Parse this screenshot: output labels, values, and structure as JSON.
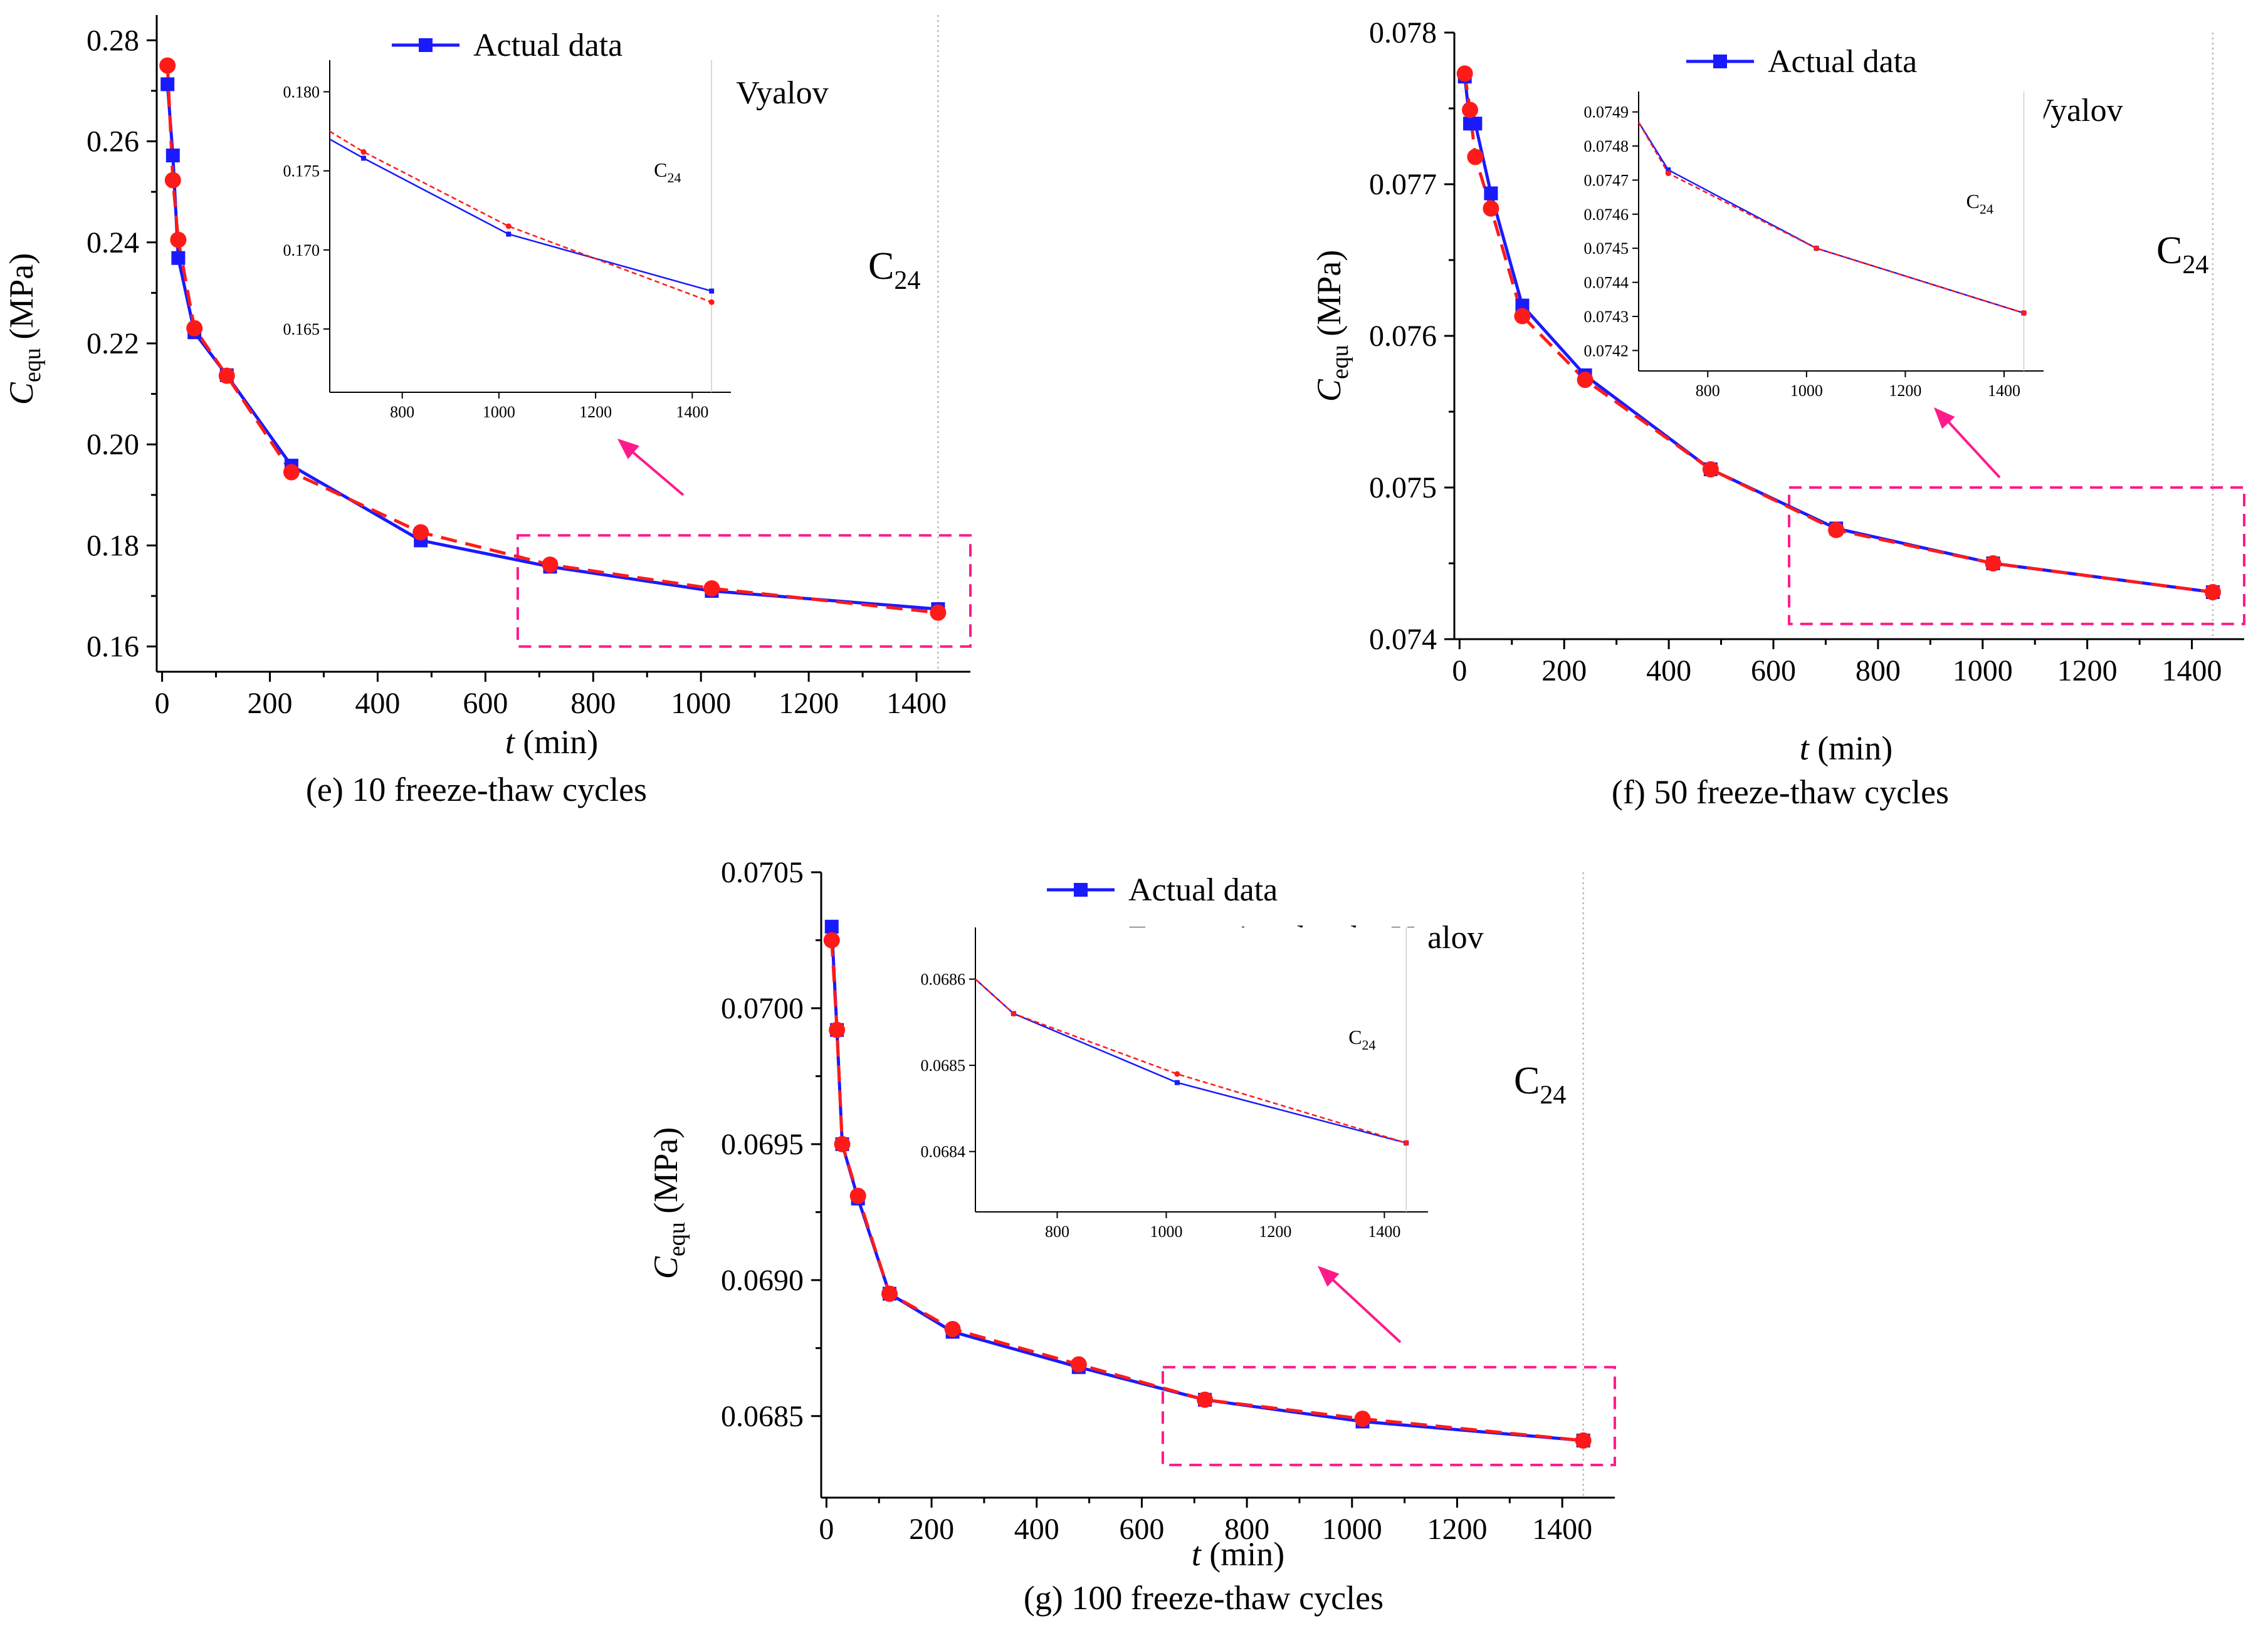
{
  "colors": {
    "actual": "#1a1aff",
    "forecast": "#ff1a1a",
    "box": "#ff1a8c",
    "arrow": "#ff1a8c",
    "c24_line": "#bbbbbb"
  },
  "legend": {
    "actual_label": "Actual data",
    "forecast_label": "Forecasting data by Vyalov"
  },
  "chart_data": [
    {
      "id": "e",
      "type": "line",
      "caption": "(e) 10 freeze-thaw cycles",
      "xlabel_italic": "t",
      "xlabel_rest": " (min)",
      "ylabel_main": "C",
      "ylabel_sub": "equ",
      "ylabel_rest": " (MPa)",
      "c24_main": "C",
      "c24_sub": "24",
      "xlim": [
        -10,
        1500
      ],
      "ylim": [
        0.155,
        0.285
      ],
      "xticks": [
        0,
        200,
        400,
        600,
        800,
        1000,
        1200,
        1400
      ],
      "xtick_labels": [
        "0",
        "200",
        "400",
        "600",
        "800",
        "1000",
        "1200",
        "1400"
      ],
      "yticks": [
        0.16,
        0.18,
        0.2,
        0.22,
        0.24,
        0.26,
        0.28
      ],
      "ytick_labels": [
        "0.16",
        "0.18",
        "0.20",
        "0.22",
        "0.24",
        "0.26",
        "0.28"
      ],
      "c24_x": 1440,
      "zoom_box": {
        "x": [
          660,
          1500
        ],
        "y": [
          0.16,
          0.182
        ]
      },
      "series": [
        {
          "name": "Actual data",
          "x": [
            10,
            20,
            30,
            60,
            120,
            240,
            480,
            720,
            1020,
            1440
          ],
          "y": [
            0.2713,
            0.2572,
            0.2369,
            0.2222,
            0.2137,
            0.1958,
            0.181,
            0.1758,
            0.171,
            0.1674
          ]
        },
        {
          "name": "Forecasting data by Vyalov",
          "x": [
            10,
            20,
            30,
            60,
            120,
            240,
            480,
            720,
            1020,
            1440
          ],
          "y": [
            0.275,
            0.2523,
            0.2405,
            0.223,
            0.2136,
            0.1945,
            0.1826,
            0.1762,
            0.1715,
            0.1667
          ]
        }
      ],
      "inset": {
        "xlim": [
          650,
          1480
        ],
        "ylim": [
          0.161,
          0.182
        ],
        "xticks": [
          800,
          1000,
          1200,
          1400
        ],
        "xtick_labels": [
          "800",
          "1000",
          "1200",
          "1400"
        ],
        "yticks": [
          0.165,
          0.17,
          0.175,
          0.18
        ],
        "ytick_labels": [
          "0.165",
          "0.170",
          "0.175",
          "0.180"
        ],
        "actual_x": [
          650,
          720,
          1020,
          1440
        ],
        "actual_y": [
          0.177,
          0.1758,
          0.171,
          0.1674
        ],
        "forecast_x": [
          650,
          720,
          1020,
          1440
        ],
        "forecast_y": [
          0.1775,
          0.1762,
          0.1715,
          0.1667
        ]
      }
    },
    {
      "id": "f",
      "type": "line",
      "caption": "(f) 50 freeze-thaw cycles",
      "xlabel_italic": "t",
      "xlabel_rest": " (min)",
      "ylabel_main": "C",
      "ylabel_sub": "equ",
      "ylabel_rest": " (MPa)",
      "c24_main": "C",
      "c24_sub": "24",
      "xlim": [
        -10,
        1500
      ],
      "ylim": [
        0.074,
        0.078
      ],
      "xticks": [
        0,
        200,
        400,
        600,
        800,
        1000,
        1200,
        1400
      ],
      "xtick_labels": [
        "0",
        "200",
        "400",
        "600",
        "800",
        "1000",
        "1200",
        "1400"
      ],
      "yticks": [
        0.074,
        0.075,
        0.076,
        0.077,
        0.078
      ],
      "ytick_labels": [
        "0.074",
        "0.075",
        "0.076",
        "0.077",
        "0.078"
      ],
      "c24_x": 1440,
      "zoom_box": {
        "x": [
          630,
          1500
        ],
        "y": [
          0.0741,
          0.075
        ]
      },
      "series": [
        {
          "name": "Actual data",
          "x": [
            10,
            20,
            30,
            60,
            120,
            240,
            480,
            720,
            1020,
            1440
          ],
          "y": [
            0.07771,
            0.0774,
            0.0774,
            0.07694,
            0.0762,
            0.07574,
            0.07512,
            0.07473,
            0.0745,
            0.07431
          ]
        },
        {
          "name": "Forecasting data by Vyalov",
          "x": [
            10,
            20,
            30,
            60,
            120,
            240,
            480,
            720,
            1020,
            1440
          ],
          "y": [
            0.07773,
            0.07749,
            0.07718,
            0.07684,
            0.07613,
            0.07571,
            0.07512,
            0.07472,
            0.0745,
            0.07431
          ]
        }
      ],
      "inset": {
        "xlim": [
          660,
          1480
        ],
        "ylim": [
          0.07414,
          0.07496
        ],
        "xticks": [
          800,
          1000,
          1200,
          1400
        ],
        "xtick_labels": [
          "800",
          "1000",
          "1200",
          "1400"
        ],
        "yticks": [
          0.0742,
          0.0743,
          0.0744,
          0.0745,
          0.0746,
          0.0747,
          0.0748,
          0.0749
        ],
        "ytick_labels": [
          "0.0742",
          "0.0743",
          "0.0744",
          "0.0745",
          "0.0746",
          "0.0747",
          "0.0748",
          "0.0749"
        ],
        "actual_x": [
          660,
          720,
          1020,
          1440
        ],
        "actual_y": [
          0.07487,
          0.07473,
          0.0745,
          0.07431
        ],
        "forecast_x": [
          660,
          720,
          1020,
          1440
        ],
        "forecast_y": [
          0.07487,
          0.07472,
          0.0745,
          0.07431
        ]
      }
    },
    {
      "id": "g",
      "type": "line",
      "caption": "(g) 100 freeze-thaw cycles",
      "xlabel_italic": "t",
      "xlabel_rest": " (min)",
      "ylabel_main": "C",
      "ylabel_sub": "equ",
      "ylabel_rest": " (MPa)",
      "c24_main": "C",
      "c24_sub": "24",
      "xlim": [
        -10,
        1500
      ],
      "ylim": [
        0.0682,
        0.0705
      ],
      "xticks": [
        0,
        200,
        400,
        600,
        800,
        1000,
        1200,
        1400
      ],
      "xtick_labels": [
        "0",
        "200",
        "400",
        "600",
        "800",
        "1000",
        "1200",
        "1400"
      ],
      "yticks": [
        0.0685,
        0.069,
        0.0695,
        0.07,
        0.0705
      ],
      "ytick_labels": [
        "0.0685",
        "0.0690",
        "0.0695",
        "0.0700",
        "0.0705"
      ],
      "c24_x": 1440,
      "zoom_box": {
        "x": [
          640,
          1500
        ],
        "y": [
          0.06832,
          0.06868
        ]
      },
      "series": [
        {
          "name": "Actual data",
          "x": [
            10,
            20,
            30,
            60,
            120,
            240,
            480,
            720,
            1020,
            1440
          ],
          "y": [
            0.0703,
            0.06992,
            0.0695,
            0.0693,
            0.06895,
            0.06881,
            0.06868,
            0.06856,
            0.06848,
            0.06841
          ]
        },
        {
          "name": "Forecasting data by Vyalov",
          "x": [
            10,
            20,
            30,
            60,
            120,
            240,
            480,
            720,
            1020,
            1440
          ],
          "y": [
            0.07025,
            0.06992,
            0.0695,
            0.06931,
            0.06895,
            0.06882,
            0.06869,
            0.06856,
            0.06849,
            0.06841
          ]
        }
      ],
      "inset": {
        "xlim": [
          650,
          1480
        ],
        "ylim": [
          0.06833,
          0.06866
        ],
        "xticks": [
          800,
          1000,
          1200,
          1400
        ],
        "xtick_labels": [
          "800",
          "1000",
          "1200",
          "1400"
        ],
        "yticks": [
          0.0684,
          0.0685,
          0.0686
        ],
        "ytick_labels": [
          "0.0684",
          "0.0685",
          "0.0686"
        ],
        "actual_x": [
          650,
          720,
          1020,
          1440
        ],
        "actual_y": [
          0.0686,
          0.06856,
          0.06848,
          0.06841
        ],
        "forecast_x": [
          650,
          720,
          1020,
          1440
        ],
        "forecast_y": [
          0.0686,
          0.06856,
          0.06849,
          0.06841
        ]
      }
    }
  ]
}
